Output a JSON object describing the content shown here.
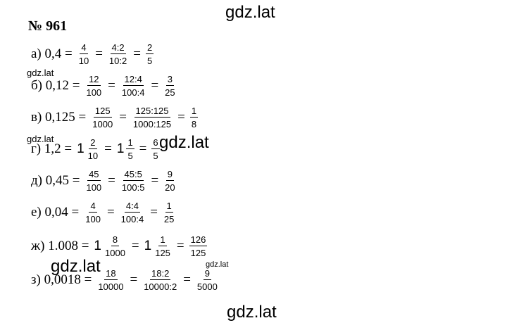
{
  "watermarks": [
    "gdz.lat",
    "gdz.lat",
    "gdz.lat",
    "gdz.lat",
    "gdz.lat",
    "gdz.lat",
    "gdz.lat"
  ],
  "heading": "№ 961",
  "lines": [
    {
      "items": [
        {
          "text": "а) 0,4 ="
        },
        {
          "num": "4",
          "den": "10"
        },
        {
          "text": "="
        },
        {
          "num": "4:2",
          "den": "10:2"
        },
        {
          "text": "="
        },
        {
          "num": "2",
          "den": "5"
        }
      ]
    },
    {
      "items": [
        {
          "text": "б) 0,12 ="
        },
        {
          "num": "12",
          "den": "100"
        },
        {
          "text": "="
        },
        {
          "num": "12:4",
          "den": "100:4"
        },
        {
          "text": "="
        },
        {
          "num": "3",
          "den": "25"
        }
      ]
    },
    {
      "items": [
        {
          "text": "в) 0,125 ="
        },
        {
          "num": "125",
          "den": "1000"
        },
        {
          "text": "="
        },
        {
          "num": "125:125",
          "den": "1000:125"
        },
        {
          "text": "="
        },
        {
          "num": "1",
          "den": "8"
        }
      ]
    },
    {
      "items": [
        {
          "text": "г) 1,2 ="
        },
        {
          "whole": "1",
          "num": "2",
          "den": "10"
        },
        {
          "text": "="
        },
        {
          "whole": "1",
          "num": "1",
          "den": "5"
        },
        {
          "text": "="
        },
        {
          "num": "6",
          "den": "5"
        }
      ]
    },
    {
      "items": [
        {
          "text": "д) 0,45 ="
        },
        {
          "num": "45",
          "den": "100"
        },
        {
          "text": "="
        },
        {
          "num": "45:5",
          "den": "100:5"
        },
        {
          "text": "="
        },
        {
          "num": "9",
          "den": "20"
        }
      ]
    },
    {
      "items": [
        {
          "text": "е) 0,04 ="
        },
        {
          "num": "4",
          "den": "100"
        },
        {
          "text": "="
        },
        {
          "num": "4:4",
          "den": "100:4"
        },
        {
          "text": "="
        },
        {
          "num": "1",
          "den": "25"
        }
      ]
    },
    {
      "items": [
        {
          "text": "ж) 1.008 ="
        },
        {
          "whole": "1",
          "num": "8",
          "den": "1000"
        },
        {
          "text": "="
        },
        {
          "whole": "1",
          "num": "1",
          "den": "125"
        },
        {
          "text": "="
        },
        {
          "num": "126",
          "den": "125"
        }
      ]
    },
    {
      "items": [
        {
          "text": "з) 0,0018 ="
        },
        {
          "num": "18",
          "den": "10000"
        },
        {
          "text": "="
        },
        {
          "num": "18:2",
          "den": "10000:2"
        },
        {
          "text": "="
        },
        {
          "num": "9",
          "den": "5000"
        }
      ]
    }
  ]
}
